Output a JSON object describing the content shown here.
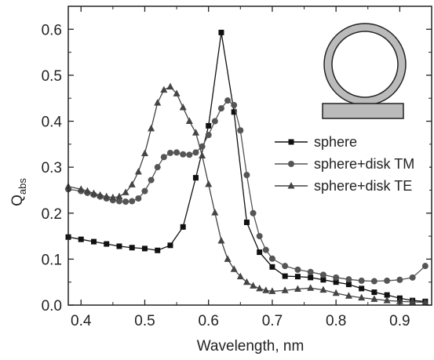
{
  "chart_data": {
    "type": "line",
    "xlabel": "Wavelength, nm",
    "ylabel": "Q",
    "ylabel_sub": "abs",
    "xlim": [
      0.38,
      0.95
    ],
    "ylim": [
      0.0,
      0.65
    ],
    "x_ticks": [
      0.4,
      0.5,
      0.6,
      0.7,
      0.8,
      0.9
    ],
    "x_tick_labels": [
      "0.4",
      "0.5",
      "0.6",
      "0.7",
      "0.8",
      "0.9"
    ],
    "y_ticks": [
      0.0,
      0.1,
      0.2,
      0.3,
      0.4,
      0.5,
      0.6
    ],
    "y_tick_labels": [
      "0.0",
      "0.1",
      "0.2",
      "0.3",
      "0.4",
      "0.5",
      "0.6"
    ],
    "grid": false,
    "legend_position": "right-middle",
    "inset": "sphere-on-disk schematic",
    "series": [
      {
        "name": "sphere",
        "marker": "square",
        "color": "#111111",
        "x": [
          0.38,
          0.4,
          0.42,
          0.44,
          0.46,
          0.48,
          0.5,
          0.52,
          0.54,
          0.56,
          0.58,
          0.6,
          0.62,
          0.64,
          0.66,
          0.68,
          0.7,
          0.72,
          0.74,
          0.76,
          0.78,
          0.8,
          0.82,
          0.84,
          0.86,
          0.88,
          0.9,
          0.92,
          0.94
        ],
        "y": [
          0.148,
          0.143,
          0.138,
          0.133,
          0.128,
          0.125,
          0.123,
          0.119,
          0.13,
          0.17,
          0.277,
          0.39,
          0.593,
          0.42,
          0.18,
          0.115,
          0.083,
          0.063,
          0.062,
          0.06,
          0.055,
          0.05,
          0.045,
          0.036,
          0.028,
          0.022,
          0.015,
          0.01,
          0.008
        ]
      },
      {
        "name": "sphere+disk TM",
        "marker": "circle",
        "color": "#555555",
        "x": [
          0.38,
          0.4,
          0.41,
          0.42,
          0.43,
          0.44,
          0.45,
          0.46,
          0.47,
          0.48,
          0.49,
          0.5,
          0.51,
          0.52,
          0.53,
          0.54,
          0.55,
          0.56,
          0.57,
          0.58,
          0.59,
          0.6,
          0.61,
          0.62,
          0.63,
          0.64,
          0.65,
          0.66,
          0.67,
          0.68,
          0.69,
          0.7,
          0.72,
          0.74,
          0.76,
          0.78,
          0.8,
          0.82,
          0.84,
          0.86,
          0.88,
          0.9,
          0.92,
          0.94
        ],
        "y": [
          0.252,
          0.248,
          0.244,
          0.24,
          0.236,
          0.232,
          0.228,
          0.226,
          0.225,
          0.226,
          0.232,
          0.248,
          0.272,
          0.3,
          0.322,
          0.331,
          0.332,
          0.328,
          0.327,
          0.332,
          0.345,
          0.37,
          0.4,
          0.428,
          0.445,
          0.435,
          0.38,
          0.283,
          0.2,
          0.15,
          0.12,
          0.101,
          0.085,
          0.077,
          0.072,
          0.066,
          0.06,
          0.056,
          0.053,
          0.052,
          0.053,
          0.055,
          0.06,
          0.085
        ]
      },
      {
        "name": "sphere+disk TE",
        "marker": "triangle",
        "color": "#444444",
        "x": [
          0.38,
          0.4,
          0.41,
          0.42,
          0.43,
          0.44,
          0.45,
          0.46,
          0.47,
          0.48,
          0.49,
          0.5,
          0.51,
          0.52,
          0.53,
          0.54,
          0.55,
          0.56,
          0.57,
          0.58,
          0.59,
          0.6,
          0.61,
          0.62,
          0.63,
          0.64,
          0.65,
          0.66,
          0.67,
          0.68,
          0.69,
          0.7,
          0.72,
          0.74,
          0.76,
          0.78,
          0.8,
          0.82,
          0.84,
          0.86,
          0.88,
          0.9,
          0.92,
          0.94
        ],
        "y": [
          0.258,
          0.252,
          0.248,
          0.243,
          0.239,
          0.236,
          0.234,
          0.236,
          0.245,
          0.262,
          0.29,
          0.33,
          0.384,
          0.44,
          0.468,
          0.475,
          0.46,
          0.43,
          0.4,
          0.375,
          0.325,
          0.263,
          0.201,
          0.14,
          0.1,
          0.078,
          0.062,
          0.05,
          0.042,
          0.036,
          0.032,
          0.03,
          0.032,
          0.035,
          0.037,
          0.033,
          0.026,
          0.02,
          0.016,
          0.013,
          0.01,
          0.008,
          0.007,
          0.006
        ]
      }
    ]
  }
}
